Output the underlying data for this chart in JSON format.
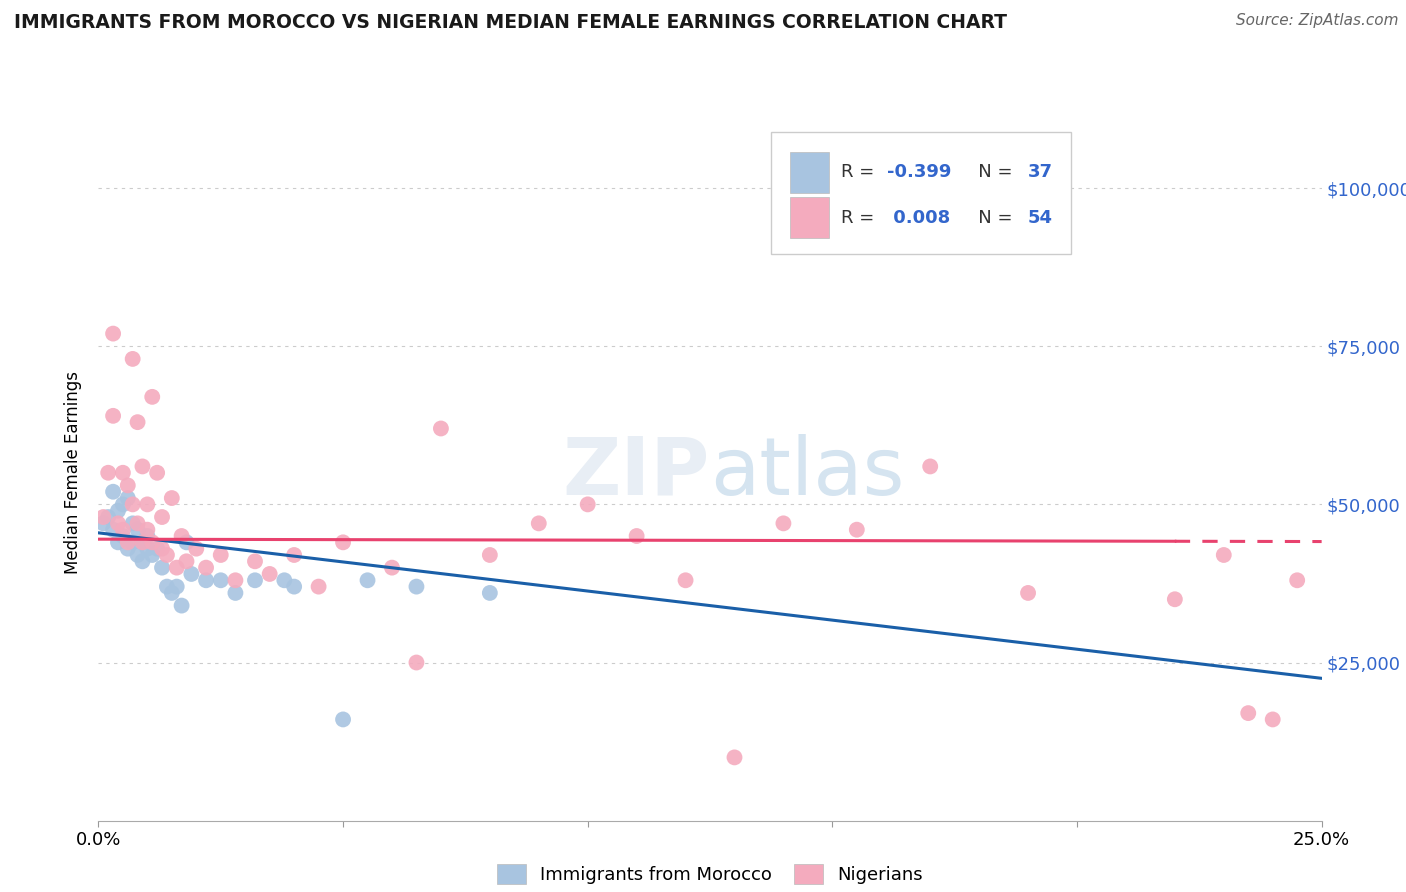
{
  "title": "IMMIGRANTS FROM MOROCCO VS NIGERIAN MEDIAN FEMALE EARNINGS CORRELATION CHART",
  "source": "Source: ZipAtlas.com",
  "ylabel": "Median Female Earnings",
  "xlim": [
    0,
    0.25
  ],
  "ylim": [
    0,
    110000
  ],
  "blue_color": "#A8C4E0",
  "pink_color": "#F4ABBE",
  "trend_blue": "#1A5FA8",
  "trend_pink": "#E8426E",
  "watermark": "ZIPatlas",
  "legend_color": "#3366CC",
  "morocco_x": [
    0.001,
    0.002,
    0.003,
    0.003,
    0.004,
    0.004,
    0.005,
    0.005,
    0.006,
    0.006,
    0.007,
    0.007,
    0.008,
    0.008,
    0.009,
    0.009,
    0.01,
    0.01,
    0.011,
    0.012,
    0.013,
    0.014,
    0.015,
    0.016,
    0.017,
    0.018,
    0.019,
    0.022,
    0.025,
    0.028,
    0.032,
    0.038,
    0.04,
    0.05,
    0.055,
    0.065,
    0.08
  ],
  "morocco_y": [
    47000,
    48000,
    52000,
    46000,
    49000,
    44000,
    50000,
    45000,
    51000,
    43000,
    47000,
    44000,
    46000,
    42000,
    44000,
    41000,
    45000,
    43000,
    42000,
    43000,
    40000,
    37000,
    36000,
    37000,
    34000,
    44000,
    39000,
    38000,
    38000,
    36000,
    38000,
    38000,
    37000,
    16000,
    38000,
    37000,
    36000
  ],
  "nigerian_x": [
    0.001,
    0.002,
    0.003,
    0.003,
    0.004,
    0.005,
    0.005,
    0.006,
    0.006,
    0.007,
    0.007,
    0.008,
    0.008,
    0.009,
    0.009,
    0.01,
    0.01,
    0.011,
    0.011,
    0.012,
    0.013,
    0.013,
    0.014,
    0.015,
    0.016,
    0.017,
    0.018,
    0.02,
    0.022,
    0.025,
    0.028,
    0.032,
    0.035,
    0.04,
    0.045,
    0.05,
    0.06,
    0.065,
    0.07,
    0.08,
    0.09,
    0.1,
    0.11,
    0.12,
    0.13,
    0.14,
    0.155,
    0.17,
    0.19,
    0.22,
    0.23,
    0.235,
    0.24,
    0.245
  ],
  "nigerian_y": [
    48000,
    55000,
    64000,
    77000,
    47000,
    55000,
    46000,
    53000,
    44000,
    73000,
    50000,
    63000,
    47000,
    56000,
    44000,
    50000,
    46000,
    67000,
    44000,
    55000,
    48000,
    43000,
    42000,
    51000,
    40000,
    45000,
    41000,
    43000,
    40000,
    42000,
    38000,
    41000,
    39000,
    42000,
    37000,
    44000,
    40000,
    25000,
    62000,
    42000,
    47000,
    50000,
    45000,
    38000,
    10000,
    47000,
    46000,
    56000,
    36000,
    35000,
    42000,
    17000,
    16000,
    38000
  ]
}
